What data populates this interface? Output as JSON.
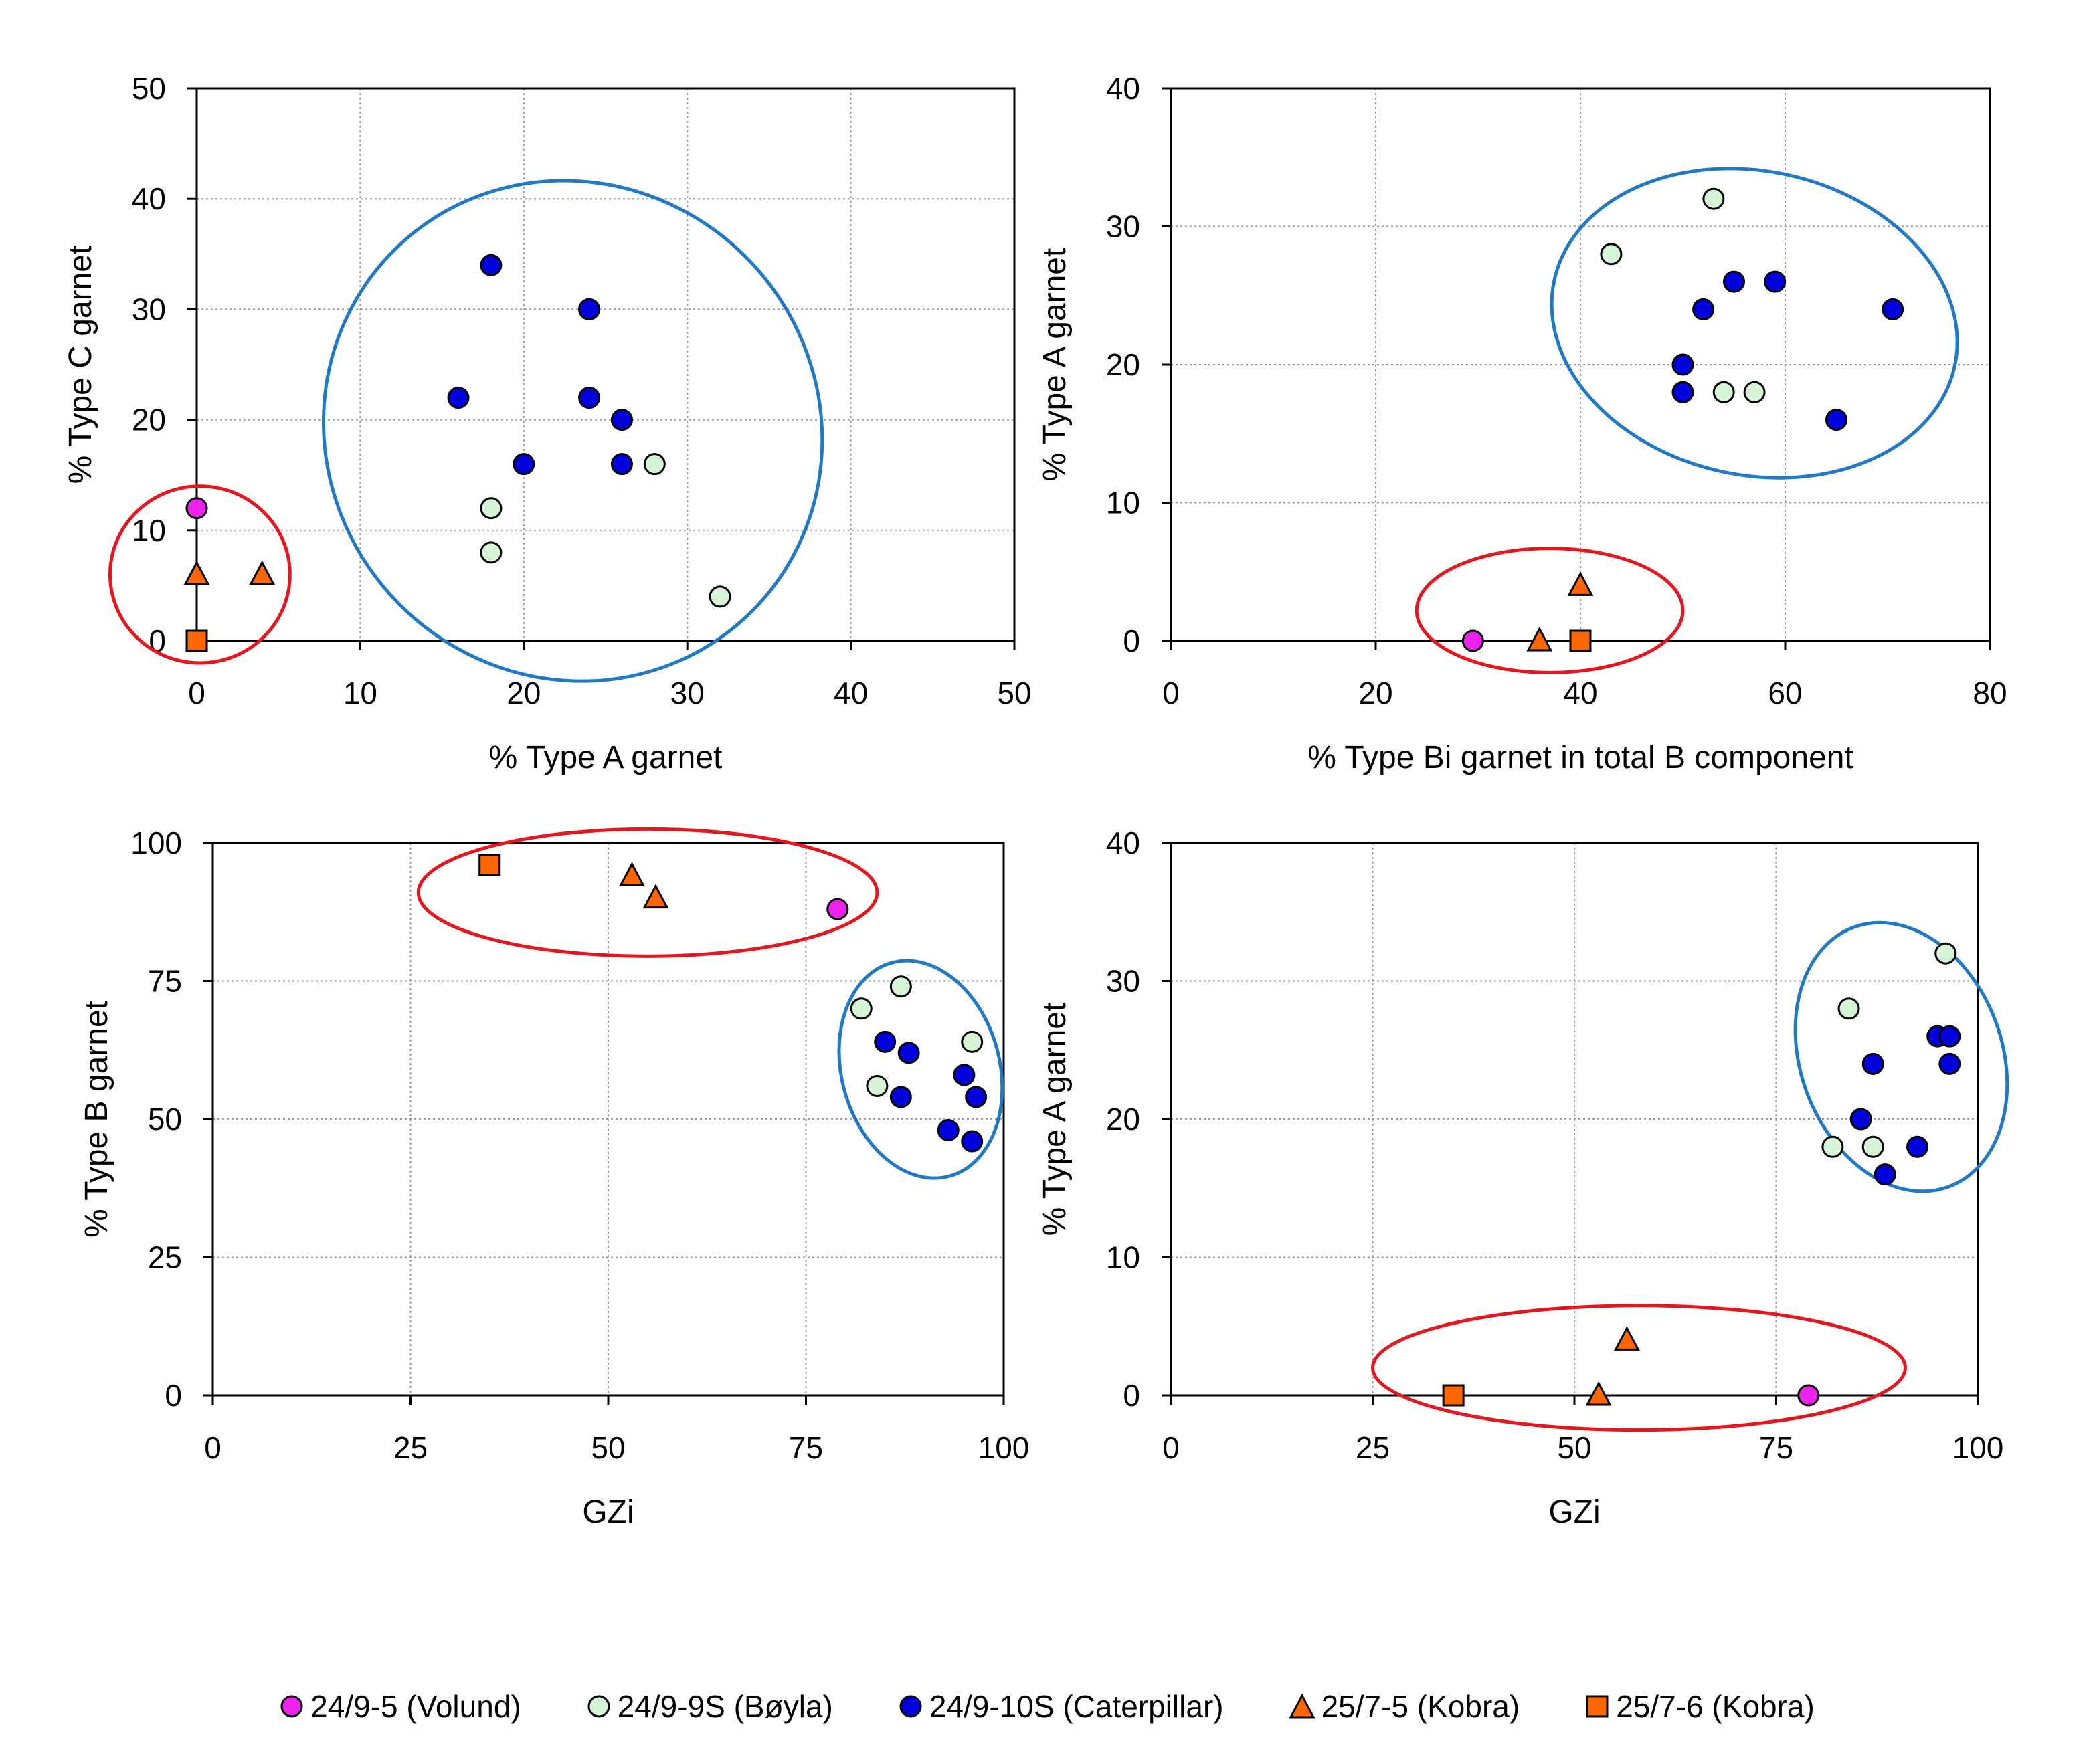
{
  "colors": {
    "volund": "#ee22ee",
    "boyla": "#d6f5d6",
    "caterpillar": "#0000dd",
    "kobra": "#ff6600",
    "blue_ellipse": "#1f78c8",
    "red_ellipse": "#e8141e"
  },
  "legend": [
    {
      "key": "volund",
      "label": "24/9-5 (Volund)",
      "marker": "circle",
      "color": "#ee22ee"
    },
    {
      "key": "boyla",
      "label": "24/9-9S (Bøyla)",
      "marker": "circle",
      "color": "#d6f5d6"
    },
    {
      "key": "caterpillar",
      "label": "24/9-10S (Caterpillar)",
      "marker": "circle",
      "color": "#0000dd"
    },
    {
      "key": "kobra_75",
      "label": "25/7-5 (Kobra)",
      "marker": "triangle",
      "color": "#ff6600"
    },
    {
      "key": "kobra_76",
      "label": "25/7-6 (Kobra)",
      "marker": "square",
      "color": "#ff6600"
    }
  ],
  "chart_data": [
    {
      "type": "scatter",
      "title": "",
      "xlabel": "% Type A garnet",
      "ylabel": "% Type C garnet",
      "xlim": [
        0,
        50
      ],
      "ylim": [
        0,
        50
      ],
      "xticks": [
        0,
        10,
        20,
        30,
        40,
        50
      ],
      "yticks": [
        0,
        10,
        20,
        30,
        40,
        50
      ],
      "grid": true,
      "series": [
        {
          "name": "24/9-5 (Volund)",
          "marker": "circle",
          "color": "#ee22ee",
          "x": [
            0
          ],
          "y": [
            12
          ]
        },
        {
          "name": "24/9-9S (Bøyla)",
          "marker": "circle",
          "color": "#d6f5d6",
          "x": [
            18,
            18,
            28,
            32
          ],
          "y": [
            12,
            8,
            16,
            4
          ]
        },
        {
          "name": "24/9-10S (Caterpillar)",
          "marker": "circle",
          "color": "#0000dd",
          "x": [
            18,
            24,
            16,
            24,
            26,
            20,
            26
          ],
          "y": [
            34,
            30,
            22,
            22,
            20,
            16,
            16
          ]
        },
        {
          "name": "25/7-5 (Kobra)",
          "marker": "triangle",
          "color": "#ff6600",
          "x": [
            0,
            4
          ],
          "y": [
            6,
            6
          ]
        },
        {
          "name": "25/7-6 (Kobra)",
          "marker": "square",
          "color": "#ff6600",
          "x": [
            0
          ],
          "y": [
            0
          ]
        }
      ],
      "annotations": [
        {
          "shape": "ellipse",
          "color": "#1f78c8",
          "cx": 23,
          "cy": 19,
          "rx": 15,
          "ry": 23,
          "angle": -42
        },
        {
          "shape": "ellipse",
          "color": "#e8141e",
          "cx": 0.2,
          "cy": 6,
          "rx": 5.5,
          "ry": 8,
          "angle": 0
        }
      ]
    },
    {
      "type": "scatter",
      "title": "",
      "xlabel": "% Type Bi garnet in total B component",
      "ylabel": "% Type A garnet",
      "xlim": [
        0,
        80
      ],
      "ylim": [
        0,
        40
      ],
      "xticks": [
        0,
        20,
        40,
        60,
        80
      ],
      "yticks": [
        0,
        10,
        20,
        30,
        40
      ],
      "grid": true,
      "series": [
        {
          "name": "24/9-5 (Volund)",
          "marker": "circle",
          "color": "#ee22ee",
          "x": [
            29.5
          ],
          "y": [
            0
          ]
        },
        {
          "name": "24/9-9S (Bøyla)",
          "marker": "circle",
          "color": "#d6f5d6",
          "x": [
            53,
            43,
            54,
            57
          ],
          "y": [
            32,
            28,
            18,
            18
          ]
        },
        {
          "name": "24/9-10S (Caterpillar)",
          "marker": "circle",
          "color": "#0000dd",
          "x": [
            55,
            59,
            52,
            70.5,
            50,
            50,
            65
          ],
          "y": [
            26,
            26,
            24,
            24,
            20,
            18,
            16
          ]
        },
        {
          "name": "25/7-5 (Kobra)",
          "marker": "triangle",
          "color": "#ff6600",
          "x": [
            40,
            36
          ],
          "y": [
            4,
            0
          ]
        },
        {
          "name": "25/7-6 (Kobra)",
          "marker": "square",
          "color": "#ff6600",
          "x": [
            40
          ],
          "y": [
            0
          ]
        }
      ],
      "annotations": [
        {
          "shape": "ellipse",
          "color": "#1f78c8",
          "cx": 57,
          "cy": 23,
          "rx": 20,
          "ry": 11,
          "angle": 12
        },
        {
          "shape": "ellipse",
          "color": "#e8141e",
          "cx": 37,
          "cy": 2.2,
          "rx": 13,
          "ry": 4.5,
          "angle": 0
        }
      ]
    },
    {
      "type": "scatter",
      "title": "",
      "xlabel": "GZi",
      "ylabel": "% Type B garnet",
      "xlim": [
        0,
        100
      ],
      "ylim": [
        0,
        100
      ],
      "xticks": [
        0,
        25,
        50,
        75,
        100
      ],
      "yticks": [
        0,
        25,
        50,
        75,
        100
      ],
      "grid": true,
      "series": [
        {
          "name": "24/9-5 (Volund)",
          "marker": "circle",
          "color": "#ee22ee",
          "x": [
            79
          ],
          "y": [
            88
          ]
        },
        {
          "name": "24/9-9S (Bøyla)",
          "marker": "circle",
          "color": "#d6f5d6",
          "x": [
            82,
            87,
            96,
            84
          ],
          "y": [
            70,
            74,
            64,
            56
          ]
        },
        {
          "name": "24/9-10S (Caterpillar)",
          "marker": "circle",
          "color": "#0000dd",
          "x": [
            85,
            88,
            95,
            87,
            96.5,
            93,
            96
          ],
          "y": [
            64,
            62,
            58,
            54,
            54,
            48,
            46
          ]
        },
        {
          "name": "25/7-5 (Kobra)",
          "marker": "triangle",
          "color": "#ff6600",
          "x": [
            53,
            56
          ],
          "y": [
            94,
            90
          ]
        },
        {
          "name": "25/7-6 (Kobra)",
          "marker": "square",
          "color": "#ff6600",
          "x": [
            35
          ],
          "y": [
            96
          ]
        }
      ],
      "annotations": [
        {
          "shape": "ellipse",
          "color": "#1f78c8",
          "cx": 89.5,
          "cy": 59,
          "rx": 10,
          "ry": 20,
          "angle": -15
        },
        {
          "shape": "ellipse",
          "color": "#e8141e",
          "cx": 55,
          "cy": 91,
          "rx": 29,
          "ry": 11.5,
          "angle": 0
        }
      ]
    },
    {
      "type": "scatter",
      "title": "",
      "xlabel": "GZi",
      "ylabel": "% Type A garnet",
      "xlim": [
        0,
        100
      ],
      "ylim": [
        0,
        40
      ],
      "xticks": [
        0,
        25,
        50,
        75,
        100
      ],
      "yticks": [
        0,
        10,
        20,
        30,
        40
      ],
      "grid": true,
      "series": [
        {
          "name": "24/9-5 (Volund)",
          "marker": "circle",
          "color": "#ee22ee",
          "x": [
            79
          ],
          "y": [
            0
          ]
        },
        {
          "name": "24/9-9S (Bøyla)",
          "marker": "circle",
          "color": "#d6f5d6",
          "x": [
            96,
            84,
            82,
            87
          ],
          "y": [
            32,
            28,
            18,
            18
          ]
        },
        {
          "name": "24/9-10S (Caterpillar)",
          "marker": "circle",
          "color": "#0000dd",
          "x": [
            95,
            96.5,
            87,
            96.5,
            85.5,
            92.5,
            88.5
          ],
          "y": [
            26,
            26,
            24,
            24,
            20,
            18,
            16
          ]
        },
        {
          "name": "25/7-5 (Kobra)",
          "marker": "triangle",
          "color": "#ff6600",
          "x": [
            56.5,
            53
          ],
          "y": [
            4,
            0
          ]
        },
        {
          "name": "25/7-6 (Kobra)",
          "marker": "square",
          "color": "#ff6600",
          "x": [
            35
          ],
          "y": [
            0
          ]
        }
      ],
      "annotations": [
        {
          "shape": "ellipse",
          "color": "#1f78c8",
          "cx": 90.5,
          "cy": 24.5,
          "rx": 12.5,
          "ry": 10,
          "angle": -20
        },
        {
          "shape": "ellipse",
          "color": "#e8141e",
          "cx": 58,
          "cy": 2,
          "rx": 33,
          "ry": 4.5,
          "angle": 0
        }
      ]
    }
  ]
}
